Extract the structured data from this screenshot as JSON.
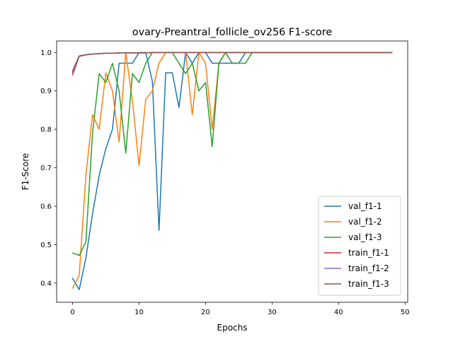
{
  "chart_data": {
    "type": "line",
    "title": "ovary-Preantral_follicle_ov256 F1-score",
    "xlabel": "Epochs",
    "ylabel": "F1-Score",
    "xlim": [
      -2.4,
      50.4
    ],
    "ylim": [
      0.35,
      1.03
    ],
    "xticks": [
      0,
      10,
      20,
      30,
      40,
      50
    ],
    "yticks": [
      0.4,
      0.5,
      0.6,
      0.7,
      0.8,
      0.9,
      1.0
    ],
    "xtick_labels": [
      "0",
      "10",
      "20",
      "30",
      "40",
      "50"
    ],
    "ytick_labels": [
      "0.4",
      "0.5",
      "0.6",
      "0.7",
      "0.8",
      "0.9",
      "1.0"
    ],
    "grid": false,
    "legend_position": "lower-right",
    "series": [
      {
        "name": "val_f1-1",
        "color": "#1f77b4",
        "x": [
          0,
          1,
          2,
          3,
          4,
          5,
          6,
          7,
          8,
          9,
          10,
          11,
          12,
          13,
          14,
          15,
          16,
          17,
          18,
          19,
          20,
          21,
          22,
          23,
          24,
          25,
          26,
          27,
          28,
          29,
          30,
          31,
          32,
          33,
          34,
          35,
          36,
          37,
          38,
          39,
          40,
          41,
          42,
          43,
          44,
          45,
          46,
          47,
          48
        ],
        "values": [
          0.412,
          0.383,
          0.465,
          0.58,
          0.68,
          0.75,
          0.8,
          0.972,
          0.972,
          0.972,
          1.0,
          1.0,
          0.925,
          0.537,
          0.947,
          0.947,
          0.857,
          1.0,
          0.972,
          1.0,
          1.0,
          0.972,
          0.972,
          0.972,
          0.972,
          0.972,
          1.0,
          1.0,
          1.0,
          1.0,
          1.0,
          1.0,
          1.0,
          1.0,
          1.0,
          1.0,
          1.0,
          1.0,
          1.0,
          1.0,
          1.0,
          1.0,
          1.0,
          1.0,
          1.0,
          1.0,
          1.0,
          1.0,
          1.0
        ]
      },
      {
        "name": "val_f1-2",
        "color": "#ff7f0e",
        "x": [
          0,
          1,
          2,
          3,
          4,
          5,
          6,
          7,
          8,
          9,
          10,
          11,
          12,
          13,
          14,
          15,
          16,
          17,
          18,
          19,
          20,
          21,
          22,
          23,
          24,
          25,
          26,
          27,
          28,
          29,
          30,
          31,
          32,
          33,
          34,
          35,
          36,
          37,
          38,
          39,
          40,
          41,
          42,
          43,
          44,
          45,
          46,
          47,
          48
        ],
        "values": [
          0.387,
          0.42,
          0.68,
          0.838,
          0.8,
          0.947,
          0.9,
          0.767,
          1.0,
          0.874,
          0.706,
          0.878,
          0.9,
          0.972,
          1.0,
          1.0,
          1.0,
          1.0,
          0.838,
          1.0,
          0.972,
          0.8,
          0.972,
          1.0,
          1.0,
          1.0,
          1.0,
          1.0,
          1.0,
          1.0,
          1.0,
          1.0,
          1.0,
          1.0,
          1.0,
          1.0,
          1.0,
          1.0,
          1.0,
          1.0,
          1.0,
          1.0,
          1.0,
          1.0,
          1.0,
          1.0,
          1.0,
          1.0,
          1.0
        ]
      },
      {
        "name": "val_f1-3",
        "color": "#2ca02c",
        "x": [
          0,
          1,
          2,
          3,
          4,
          5,
          6,
          7,
          8,
          9,
          10,
          11,
          12,
          13,
          14,
          15,
          16,
          17,
          18,
          19,
          20,
          21,
          22,
          23,
          24,
          25,
          26,
          27,
          28,
          29,
          30,
          31,
          32,
          33,
          34,
          35,
          36,
          37,
          38,
          39,
          40,
          41,
          42,
          43,
          44,
          45,
          46,
          47,
          48
        ],
        "values": [
          0.478,
          0.472,
          0.507,
          0.79,
          0.945,
          0.922,
          0.972,
          0.9,
          0.738,
          0.945,
          0.922,
          0.972,
          1.0,
          1.0,
          1.0,
          1.0,
          0.972,
          0.945,
          0.972,
          0.9,
          0.922,
          0.755,
          0.972,
          1.0,
          0.972,
          0.972,
          0.972,
          1.0,
          1.0,
          1.0,
          1.0,
          1.0,
          1.0,
          1.0,
          1.0,
          1.0,
          1.0,
          1.0,
          1.0,
          1.0,
          1.0,
          1.0,
          1.0,
          1.0,
          1.0,
          1.0,
          1.0,
          1.0,
          1.0
        ]
      },
      {
        "name": "train_f1-1",
        "color": "#d62728",
        "x": [
          0,
          1,
          2,
          3,
          4,
          5,
          6,
          7,
          8,
          9,
          10,
          11,
          12,
          13,
          14,
          15,
          16,
          17,
          18,
          19,
          20,
          21,
          22,
          23,
          24,
          25,
          26,
          27,
          28,
          29,
          30,
          31,
          32,
          33,
          34,
          35,
          36,
          37,
          38,
          39,
          40,
          41,
          42,
          43,
          44,
          45,
          46,
          47,
          48
        ],
        "values": [
          0.942,
          0.99,
          0.994,
          0.996,
          0.997,
          0.998,
          0.998,
          0.999,
          0.999,
          0.999,
          0.999,
          0.999,
          1.0,
          1.0,
          1.0,
          1.0,
          1.0,
          1.0,
          1.0,
          1.0,
          1.0,
          1.0,
          1.0,
          1.0,
          1.0,
          1.0,
          1.0,
          1.0,
          1.0,
          1.0,
          1.0,
          1.0,
          1.0,
          1.0,
          1.0,
          1.0,
          1.0,
          1.0,
          1.0,
          1.0,
          1.0,
          1.0,
          1.0,
          1.0,
          1.0,
          1.0,
          1.0,
          1.0,
          1.0
        ]
      },
      {
        "name": "train_f1-2",
        "color": "#9467bd",
        "x": [
          0,
          1,
          2,
          3,
          4,
          5,
          6,
          7,
          8,
          9,
          10,
          11,
          12,
          13,
          14,
          15,
          16,
          17,
          18,
          19,
          20,
          21,
          22,
          23,
          24,
          25,
          26,
          27,
          28,
          29,
          30,
          31,
          32,
          33,
          34,
          35,
          36,
          37,
          38,
          39,
          40,
          41,
          42,
          43,
          44,
          45,
          46,
          47,
          48
        ],
        "values": [
          0.948,
          0.991,
          0.994,
          0.996,
          0.997,
          0.998,
          0.998,
          0.999,
          0.999,
          0.999,
          0.999,
          0.999,
          1.0,
          1.0,
          1.0,
          1.0,
          1.0,
          1.0,
          1.0,
          1.0,
          1.0,
          1.0,
          1.0,
          1.0,
          1.0,
          1.0,
          1.0,
          1.0,
          1.0,
          1.0,
          1.0,
          1.0,
          1.0,
          1.0,
          1.0,
          1.0,
          1.0,
          1.0,
          1.0,
          1.0,
          1.0,
          1.0,
          1.0,
          1.0,
          1.0,
          1.0,
          1.0,
          1.0,
          1.0
        ]
      },
      {
        "name": "train_f1-3",
        "color": "#8c564b",
        "x": [
          0,
          1,
          2,
          3,
          4,
          5,
          6,
          7,
          8,
          9,
          10,
          11,
          12,
          13,
          14,
          15,
          16,
          17,
          18,
          19,
          20,
          21,
          22,
          23,
          24,
          25,
          26,
          27,
          28,
          29,
          30,
          31,
          32,
          33,
          34,
          35,
          36,
          37,
          38,
          39,
          40,
          41,
          42,
          43,
          44,
          45,
          46,
          47,
          48
        ],
        "values": [
          0.952,
          0.991,
          0.994,
          0.996,
          0.997,
          0.998,
          0.998,
          0.999,
          0.999,
          0.999,
          0.999,
          0.999,
          1.0,
          1.0,
          1.0,
          1.0,
          1.0,
          1.0,
          1.0,
          1.0,
          1.0,
          1.0,
          1.0,
          1.0,
          1.0,
          1.0,
          1.0,
          1.0,
          1.0,
          1.0,
          1.0,
          1.0,
          1.0,
          1.0,
          1.0,
          1.0,
          1.0,
          1.0,
          1.0,
          1.0,
          1.0,
          1.0,
          1.0,
          1.0,
          1.0,
          1.0,
          1.0,
          1.0,
          1.0
        ]
      }
    ]
  }
}
